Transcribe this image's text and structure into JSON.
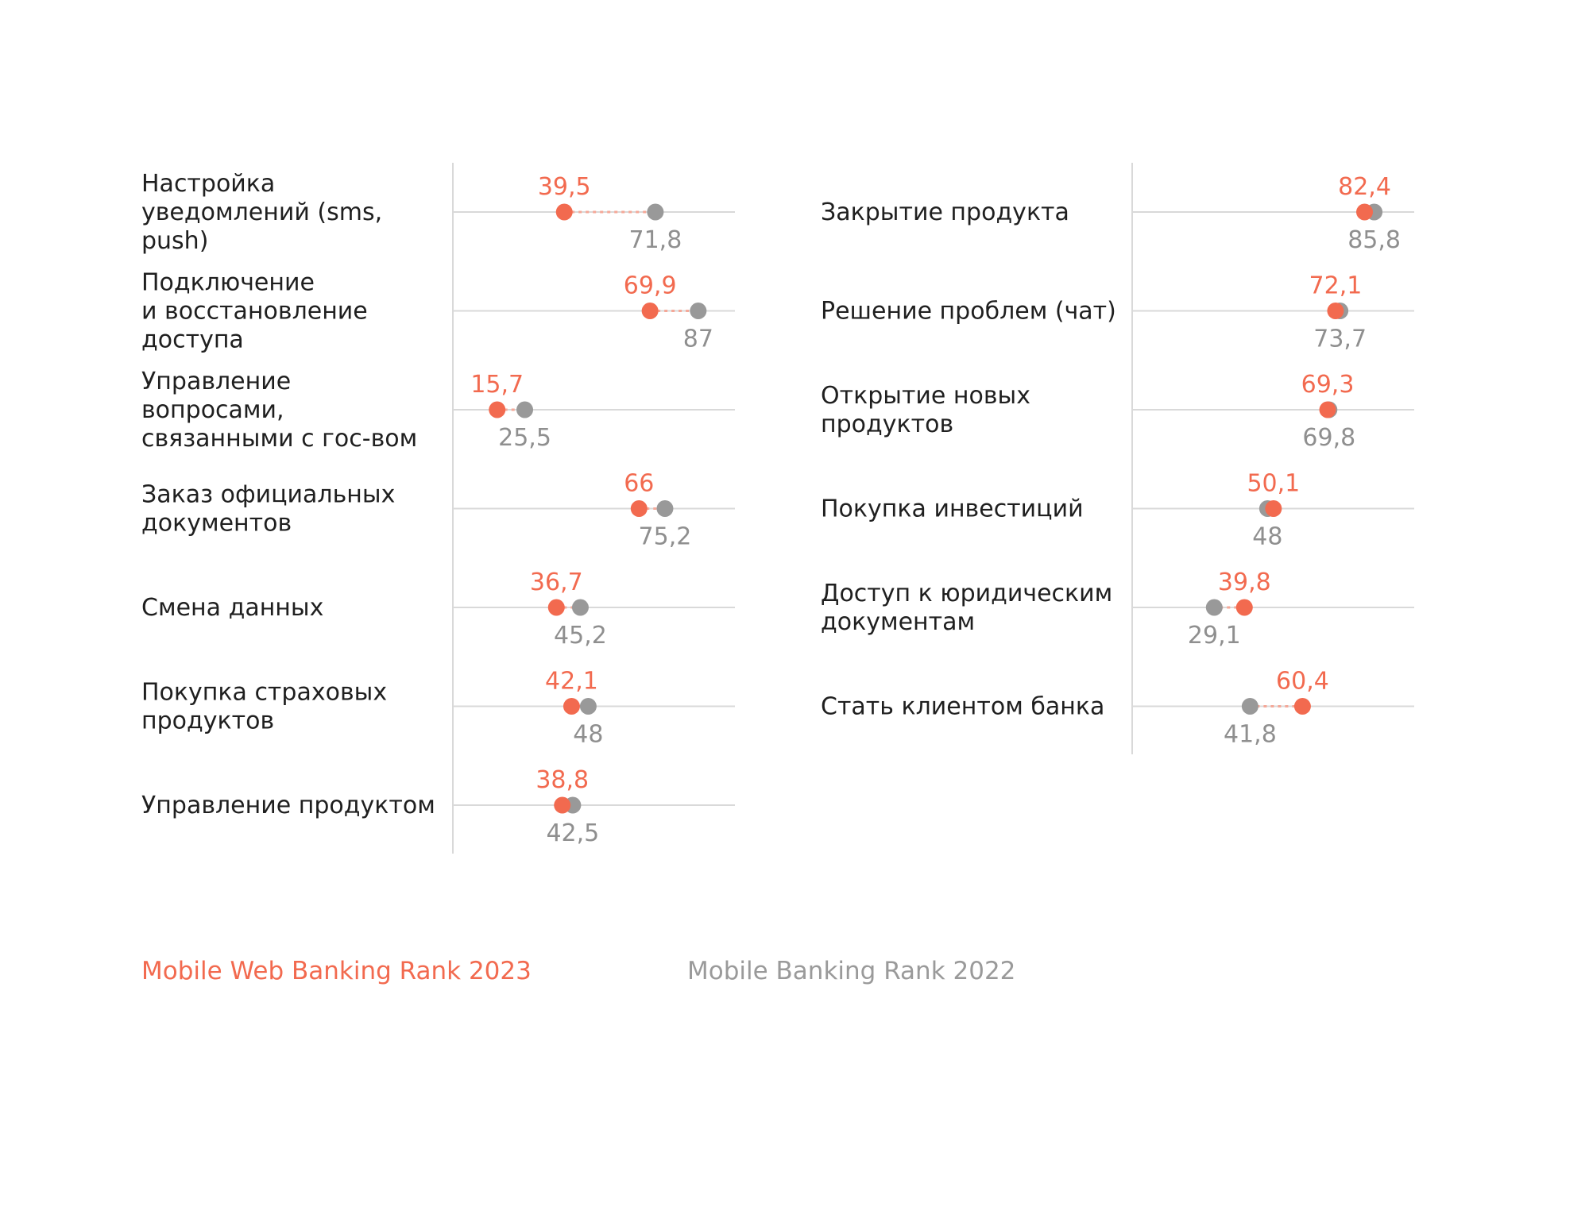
{
  "colors": {
    "new": "#f26a4f",
    "old": "#999999",
    "axis": "#d9d9d9",
    "text": "#1f1f1f"
  },
  "legend": {
    "new_label": "Mobile Web Banking Rank 2023",
    "old_label": "Mobile Banking Rank 2022"
  },
  "chart_data": [
    {
      "type": "dumbbell",
      "xlim": [
        0,
        100
      ],
      "series": [
        {
          "name": "Mobile Web Banking Rank 2023",
          "values": [
            39.5,
            69.9,
            15.7,
            66,
            36.7,
            42.1,
            38.8
          ]
        },
        {
          "name": "Mobile Banking Rank 2022",
          "values": [
            71.8,
            87,
            25.5,
            75.2,
            45.2,
            48,
            42.5
          ]
        }
      ],
      "categories": [
        [
          "Настройка",
          "уведомлений (sms,",
          "push)"
        ],
        [
          "Подключение",
          "и восстановление",
          "доступа"
        ],
        [
          "Управление",
          "вопросами,",
          "связанными с гос-вом"
        ],
        [
          "Заказ официальных",
          "документов"
        ],
        [
          "Смена данных"
        ],
        [
          "Покупка страховых",
          "продуктов"
        ],
        [
          "Управление продуктом"
        ]
      ],
      "value_labels_new": [
        "39,5",
        "69,9",
        "15,7",
        "66",
        "36,7",
        "42,1",
        "38,8"
      ],
      "value_labels_old": [
        "71,8",
        "87",
        "25,5",
        "75,2",
        "45,2",
        "48",
        "42,5"
      ]
    },
    {
      "type": "dumbbell",
      "xlim": [
        0,
        100
      ],
      "series": [
        {
          "name": "Mobile Web Banking Rank 2023",
          "values": [
            82.4,
            72.1,
            69.3,
            50.1,
            39.8,
            60.4
          ]
        },
        {
          "name": "Mobile Banking Rank 2022",
          "values": [
            85.8,
            73.7,
            69.8,
            48,
            29.1,
            41.8
          ]
        }
      ],
      "categories": [
        [
          "Закрытие продукта"
        ],
        [
          "Решение проблем (чат)"
        ],
        [
          "Открытие новых",
          "продуктов"
        ],
        [
          "Покупка инвестиций"
        ],
        [
          "Доступ к юридическим",
          "документам"
        ],
        [
          "Стать клиентом банка"
        ]
      ],
      "value_labels_new": [
        "82,4",
        "72,1",
        "69,3",
        "50,1",
        "39,8",
        "60,4"
      ],
      "value_labels_old": [
        "85,8",
        "73,7",
        "69,8",
        "48",
        "29,1",
        "41,8"
      ]
    }
  ]
}
